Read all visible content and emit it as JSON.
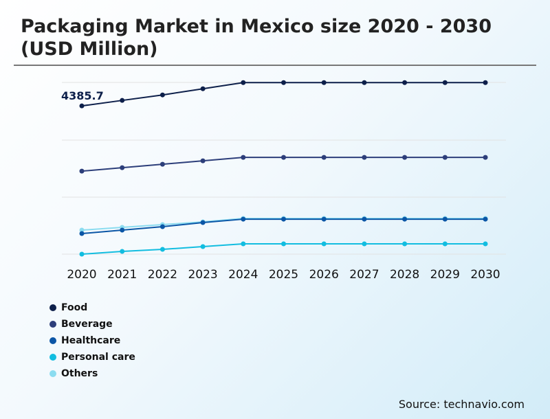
{
  "title": "Packaging Market in Mexico size 2020 - 2030 (USD Million)",
  "source": "Source: technavio.com",
  "chart_data": {
    "type": "line",
    "title": "Packaging Market in Mexico size 2020 - 2030 (USD Million)",
    "x": [
      "2020",
      "2021",
      "2022",
      "2023",
      "2024",
      "2025",
      "2026",
      "2027",
      "2028",
      "2029",
      "2030"
    ],
    "ylim": [
      0,
      5080
    ],
    "grid": true,
    "legend_position": "bottom-left",
    "annotation": "4385.7",
    "series": [
      {
        "name": "Food",
        "color": "#0d1f4a",
        "values": [
          4385.7,
          4548,
          4710,
          4893,
          5075,
          5075,
          5075,
          5075,
          5075,
          5075,
          5075
        ]
      },
      {
        "name": "Beverage",
        "color": "#2c3e7a",
        "values": [
          2456,
          2558,
          2659,
          2761,
          2862,
          2862,
          2862,
          2862,
          2862,
          2862,
          2862
        ]
      },
      {
        "name": "Healthcare",
        "color": "#0b56a6",
        "values": [
          609,
          711,
          812,
          934,
          1035,
          1035,
          1035,
          1035,
          1035,
          1035,
          1035
        ]
      },
      {
        "name": "Personal care",
        "color": "#12bde0",
        "values": [
          0,
          81,
          142,
          223,
          305,
          305,
          305,
          305,
          305,
          305,
          305
        ]
      },
      {
        "name": "Others",
        "color": "#8bdcf0",
        "values": [
          711,
          792,
          873,
          954,
          1056,
          1056,
          1056,
          1056,
          1056,
          1056,
          1056
        ]
      }
    ]
  }
}
